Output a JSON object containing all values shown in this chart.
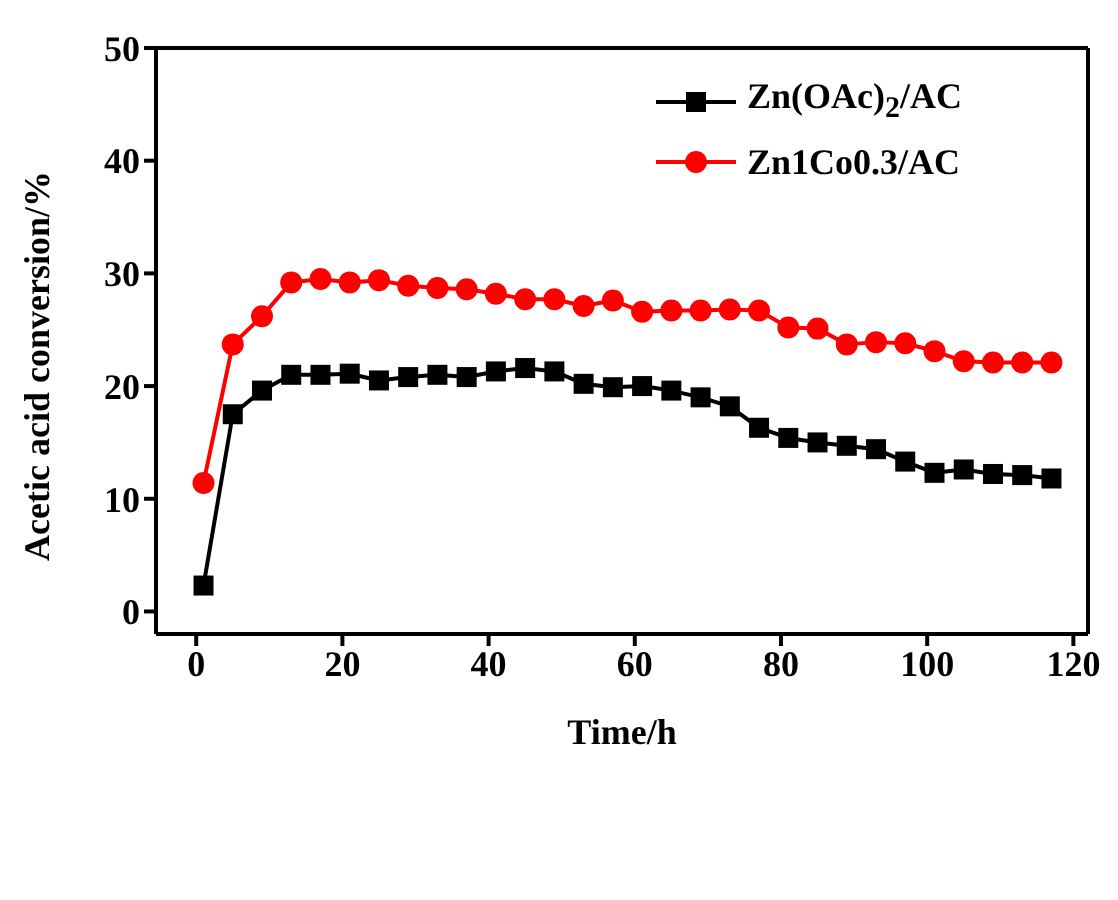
{
  "chart_data": {
    "type": "line",
    "xlabel": "Time/h",
    "ylabel": "Acetic acid conversion/%",
    "x": [
      1,
      5,
      9,
      13,
      17,
      21,
      25,
      29,
      33,
      37,
      41,
      45,
      49,
      53,
      57,
      61,
      65,
      69,
      73,
      77,
      81,
      85,
      89,
      93,
      97,
      101,
      105,
      109,
      113,
      117
    ],
    "series": [
      {
        "name": "Zn(OAc)$_{2}$/AC",
        "color": "#000000",
        "marker": "square",
        "values": [
          2.3,
          17.5,
          19.6,
          21.0,
          21.0,
          21.1,
          20.5,
          20.8,
          21.0,
          20.8,
          21.3,
          21.6,
          21.3,
          20.2,
          19.9,
          20.0,
          19.6,
          19.0,
          18.2,
          16.3,
          15.4,
          15.0,
          14.7,
          14.4,
          13.3,
          12.3,
          12.6,
          12.2,
          12.1,
          11.8
        ]
      },
      {
        "name": "Zn1Co0.3/AC",
        "color": "#ff0000",
        "marker": "circle",
        "values": [
          11.4,
          23.7,
          26.2,
          29.2,
          29.5,
          29.2,
          29.4,
          28.9,
          28.7,
          28.6,
          28.2,
          27.7,
          27.7,
          27.1,
          27.6,
          26.6,
          26.7,
          26.7,
          26.8,
          26.7,
          25.2,
          25.1,
          23.7,
          23.9,
          23.8,
          23.1,
          22.2,
          22.1,
          22.1,
          22.1
        ]
      }
    ],
    "xlim": [
      -5.5,
      122
    ],
    "xticks": [
      0,
      20,
      40,
      60,
      80,
      100,
      120
    ],
    "ylim": [
      -2,
      50
    ],
    "yticks": [
      0,
      10,
      20,
      30,
      40,
      50
    ],
    "legend": "top right",
    "line_style": "solid"
  }
}
